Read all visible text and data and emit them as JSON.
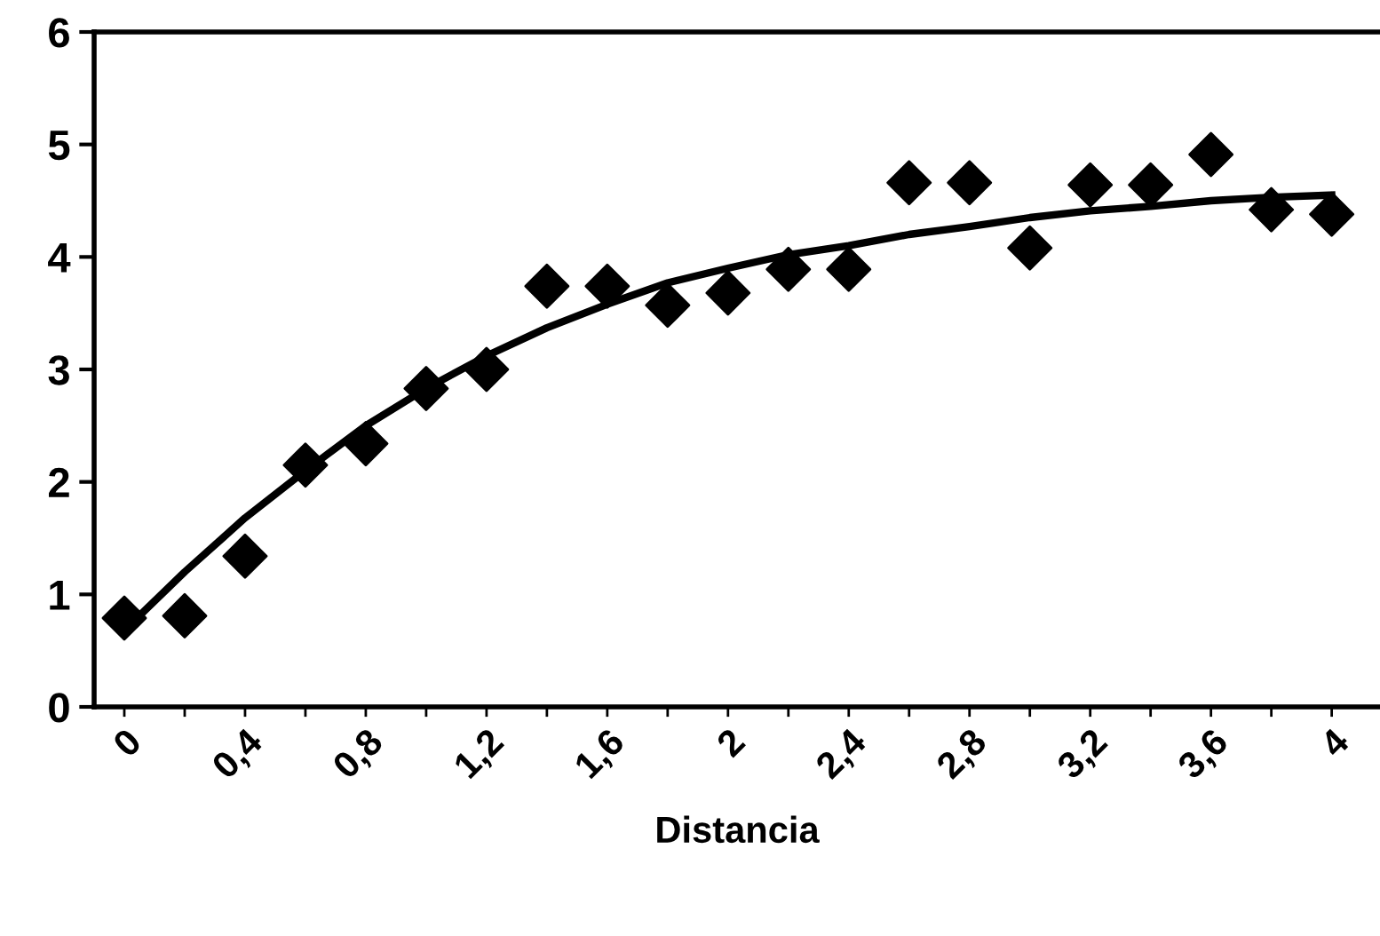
{
  "chart_data": {
    "type": "scatter",
    "xlabel": "Distancia",
    "categories": [
      "0",
      null,
      "0,4",
      null,
      "0,8",
      null,
      "1,2",
      null,
      "1,6",
      null,
      "2",
      null,
      "2,4",
      null,
      "2,8",
      null,
      "3,2",
      null,
      "3,6",
      null,
      "4"
    ],
    "series": [
      {
        "color": "#000000",
        "marker": "diamond",
        "values": [
          0.79,
          0.81,
          1.34,
          2.15,
          2.34,
          2.83,
          3.0,
          3.74,
          3.74,
          3.57,
          3.68,
          3.89,
          3.89,
          4.66,
          4.66,
          4.08,
          4.64,
          4.64,
          4.91,
          4.42,
          4.38
        ]
      },
      {
        "type": "line",
        "color": "#000000",
        "marker": "none",
        "line_style": "solid",
        "values": [
          0.68,
          1.2,
          1.68,
          2.1,
          2.5,
          2.83,
          3.12,
          3.37,
          3.58,
          3.77,
          3.9,
          4.02,
          4.1,
          4.2,
          4.27,
          4.35,
          4.41,
          4.45,
          4.5,
          4.53,
          4.55
        ]
      }
    ],
    "ylim": [
      0,
      6
    ],
    "yticks": [
      0,
      1,
      2,
      3,
      4,
      5,
      6
    ],
    "grid": false,
    "legend": false
  }
}
